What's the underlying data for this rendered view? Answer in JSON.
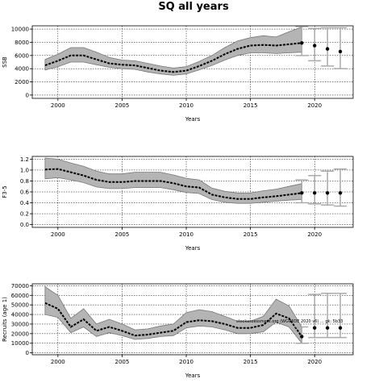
{
  "figure": {
    "title": "SQ all years",
    "annotation": "stockassessment.org  (WGWIDE 2020 v6) ... gk: 5b33"
  },
  "chart_data": [
    {
      "type": "line",
      "name": "ssb",
      "xlabel": "Years",
      "ylabel": "SSB",
      "xlim": [
        1998,
        2023
      ],
      "ylim": [
        -500,
        10500
      ],
      "xticks": [
        2000,
        2005,
        2010,
        2015,
        2020
      ],
      "yticks": [
        0,
        2000,
        4000,
        6000,
        8000,
        10000
      ],
      "ytick_labels": [
        "0",
        "2000",
        "4000",
        "6000",
        "8000",
        "10000"
      ],
      "grid": true,
      "x": [
        1999,
        2000,
        2001,
        2002,
        2003,
        2004,
        2005,
        2006,
        2007,
        2008,
        2009,
        2010,
        2011,
        2012,
        2013,
        2014,
        2015,
        2016,
        2017,
        2018,
        2019
      ],
      "values": [
        4500,
        5200,
        6000,
        6000,
        5400,
        4800,
        4600,
        4500,
        4100,
        3700,
        3500,
        3700,
        4400,
        5200,
        6200,
        7000,
        7500,
        7600,
        7500,
        7700,
        7900
      ],
      "lower": [
        3800,
        4300,
        5000,
        5000,
        4600,
        4200,
        4000,
        3900,
        3500,
        3200,
        3000,
        3200,
        3800,
        4500,
        5300,
        6000,
        6400,
        6400,
        6300,
        6400,
        6500
      ],
      "upper": [
        5400,
        6200,
        7200,
        7200,
        6500,
        5700,
        5300,
        5200,
        4800,
        4400,
        4100,
        4300,
        5100,
        6000,
        7200,
        8200,
        8700,
        9000,
        8800,
        9600,
        10300
      ],
      "forecast": {
        "x": [
          2019,
          2020,
          2021,
          2022
        ],
        "values": [
          7900,
          7500,
          7000,
          6600
        ],
        "lower": [
          6000,
          5200,
          4400,
          4000
        ],
        "upper": [
          10400,
          10100,
          10200,
          10200
        ]
      }
    },
    {
      "type": "line",
      "name": "fbar",
      "xlabel": "Years",
      "ylabel": "F3-5",
      "xlim": [
        1998,
        2023
      ],
      "ylim": [
        -0.05,
        1.25
      ],
      "xticks": [
        2000,
        2005,
        2010,
        2015,
        2020
      ],
      "yticks": [
        0.0,
        0.2,
        0.4,
        0.6,
        0.8,
        1.0,
        1.2
      ],
      "ytick_labels": [
        "0.0",
        "0.2",
        "0.4",
        "0.6",
        "0.8",
        "1.0",
        "1.2"
      ],
      "grid": true,
      "x": [
        1999,
        2000,
        2001,
        2002,
        2003,
        2004,
        2005,
        2006,
        2007,
        2008,
        2009,
        2010,
        2011,
        2012,
        2013,
        2014,
        2015,
        2016,
        2017,
        2018,
        2019
      ],
      "values": [
        1.01,
        1.02,
        0.96,
        0.9,
        0.82,
        0.78,
        0.78,
        0.8,
        0.8,
        0.8,
        0.76,
        0.7,
        0.68,
        0.55,
        0.5,
        0.47,
        0.47,
        0.5,
        0.52,
        0.55,
        0.58
      ],
      "lower": [
        0.84,
        0.86,
        0.82,
        0.77,
        0.69,
        0.66,
        0.66,
        0.68,
        0.68,
        0.68,
        0.64,
        0.59,
        0.57,
        0.46,
        0.41,
        0.39,
        0.39,
        0.41,
        0.43,
        0.45,
        0.46
      ],
      "upper": [
        1.22,
        1.2,
        1.13,
        1.07,
        0.98,
        0.93,
        0.93,
        0.96,
        0.96,
        0.96,
        0.91,
        0.85,
        0.82,
        0.67,
        0.61,
        0.58,
        0.58,
        0.62,
        0.65,
        0.7,
        0.75
      ],
      "forecast": {
        "x": [
          2019,
          2020,
          2021,
          2022
        ],
        "values": [
          0.58,
          0.58,
          0.58,
          0.58
        ],
        "lower": [
          0.4,
          0.38,
          0.36,
          0.34
        ],
        "upper": [
          0.82,
          0.9,
          0.98,
          1.02
        ]
      }
    },
    {
      "type": "line",
      "name": "recruits",
      "xlabel": "Years",
      "ylabel": "Recruits (age 1)",
      "xlim": [
        1998,
        2023
      ],
      "ylim": [
        -2000,
        72000
      ],
      "xticks": [
        2000,
        2005,
        2010,
        2015,
        2020
      ],
      "yticks": [
        0,
        10000,
        20000,
        30000,
        40000,
        50000,
        60000,
        70000
      ],
      "ytick_labels": [
        "0",
        "10000",
        "20000",
        "30000",
        "40000",
        "50000",
        "60000",
        "70000"
      ],
      "grid": true,
      "x": [
        1999,
        2000,
        2001,
        2002,
        2003,
        2004,
        2005,
        2006,
        2007,
        2008,
        2009,
        2010,
        2011,
        2012,
        2013,
        2014,
        2015,
        2016,
        2017,
        2018,
        2019
      ],
      "values": [
        52000,
        46000,
        27000,
        35000,
        23000,
        27000,
        23000,
        18000,
        19000,
        21000,
        23000,
        32000,
        34000,
        33000,
        30000,
        26000,
        26000,
        29000,
        41000,
        36000,
        17000
      ],
      "lower": [
        40000,
        37000,
        21000,
        27000,
        17000,
        21000,
        18000,
        14000,
        15000,
        17000,
        18000,
        26000,
        28000,
        27000,
        24000,
        20000,
        20000,
        22000,
        32000,
        27000,
        10000
      ],
      "upper": [
        69000,
        60000,
        36000,
        46000,
        30000,
        35000,
        30000,
        24000,
        25000,
        28000,
        30000,
        42000,
        45000,
        43000,
        38000,
        33000,
        33000,
        38000,
        56000,
        49000,
        27000
      ],
      "forecast": {
        "x": [
          2019,
          2020,
          2021,
          2022
        ],
        "values": [
          17000,
          26000,
          26000,
          26000
        ],
        "lower": [
          10000,
          16000,
          16000,
          16000
        ],
        "upper": [
          27000,
          61000,
          62000,
          62000
        ]
      }
    }
  ]
}
